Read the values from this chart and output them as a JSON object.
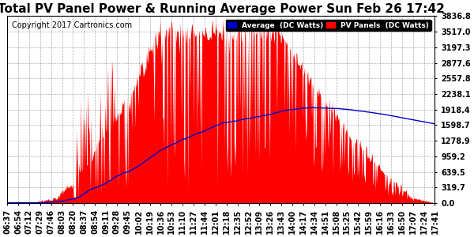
{
  "title": "Total PV Panel Power & Running Average Power Sun Feb 26 17:42",
  "copyright": "Copyright 2017 Cartronics.com",
  "ylabel_values": [
    0.0,
    319.7,
    639.5,
    959.2,
    1278.9,
    1598.7,
    1918.4,
    2238.1,
    2557.8,
    2877.6,
    3197.3,
    3517.0,
    3836.8
  ],
  "ymax": 3836.8,
  "ymin": 0.0,
  "bg_color": "#ffffff",
  "plot_bg_color": "#ffffff",
  "grid_color": "#999999",
  "bar_color": "#ff0000",
  "avg_color": "#0000cc",
  "legend_avg_label": "Average  (DC Watts)",
  "legend_pv_label": "PV Panels  (DC Watts)",
  "legend_avg_bg": "#0000cc",
  "legend_pv_bg": "#ff0000",
  "title_fontsize": 11,
  "copyright_fontsize": 7,
  "tick_fontsize": 7,
  "xtick_labels": [
    "06:37",
    "06:54",
    "07:12",
    "07:29",
    "07:46",
    "08:03",
    "08:20",
    "08:37",
    "08:54",
    "09:11",
    "09:28",
    "09:45",
    "10:02",
    "10:19",
    "10:36",
    "10:53",
    "11:10",
    "11:27",
    "11:44",
    "12:01",
    "12:18",
    "12:35",
    "12:52",
    "13:09",
    "13:26",
    "13:43",
    "14:00",
    "14:17",
    "14:34",
    "14:51",
    "15:08",
    "15:25",
    "15:42",
    "15:59",
    "16:16",
    "16:33",
    "16:50",
    "17:07",
    "17:24",
    "17:41"
  ]
}
